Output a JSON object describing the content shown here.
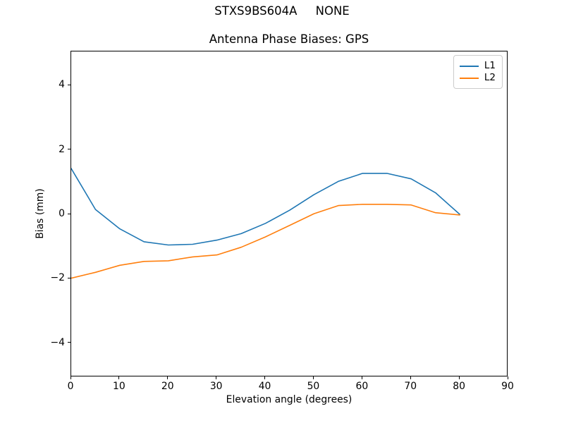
{
  "suptitle": "STXS9BS604A     NONE",
  "title": "Antenna Phase Biases: GPS",
  "x_axis": {
    "label": "Elevation angle (degrees)",
    "ticks": [
      {
        "value": 0,
        "label": "0"
      },
      {
        "value": 10,
        "label": "10"
      },
      {
        "value": 20,
        "label": "20"
      },
      {
        "value": 30,
        "label": "30"
      },
      {
        "value": 40,
        "label": "40"
      },
      {
        "value": 50,
        "label": "50"
      },
      {
        "value": 60,
        "label": "60"
      },
      {
        "value": 70,
        "label": "70"
      },
      {
        "value": 80,
        "label": "80"
      },
      {
        "value": 90,
        "label": "90"
      }
    ]
  },
  "y_axis": {
    "label": "Bias (mm)",
    "ticks": [
      {
        "value": -4,
        "label": "−4"
      },
      {
        "value": -2,
        "label": "−2"
      },
      {
        "value": 0,
        "label": "0"
      },
      {
        "value": 2,
        "label": "2"
      },
      {
        "value": 4,
        "label": "4"
      }
    ]
  },
  "legend": {
    "items": [
      {
        "label": "L1",
        "color": "#1f77b4"
      },
      {
        "label": "L2",
        "color": "#ff7f0e"
      }
    ]
  },
  "chart_data": {
    "type": "line",
    "suptitle": "STXS9BS604A     NONE",
    "title": "Antenna Phase Biases: GPS",
    "xlabel": "Elevation angle (degrees)",
    "ylabel": "Bias (mm)",
    "xlim": [
      0,
      90
    ],
    "ylim": [
      -5.05,
      5.05
    ],
    "grid": false,
    "legend_position": "upper right",
    "x": [
      0,
      5,
      10,
      15,
      20,
      25,
      30,
      35,
      40,
      45,
      50,
      55,
      60,
      65,
      70,
      75,
      80
    ],
    "series": [
      {
        "name": "L1",
        "color": "#1f77b4",
        "values": [
          1.42,
          0.15,
          -0.45,
          -0.85,
          -0.95,
          -0.93,
          -0.8,
          -0.6,
          -0.28,
          0.13,
          0.61,
          1.02,
          1.27,
          1.27,
          1.1,
          0.67,
          0.0
        ]
      },
      {
        "name": "L2",
        "color": "#ff7f0e",
        "values": [
          -1.98,
          -1.8,
          -1.58,
          -1.46,
          -1.44,
          -1.32,
          -1.26,
          -1.02,
          -0.7,
          -0.34,
          0.02,
          0.27,
          0.31,
          0.31,
          0.29,
          0.05,
          -0.02
        ]
      }
    ]
  }
}
